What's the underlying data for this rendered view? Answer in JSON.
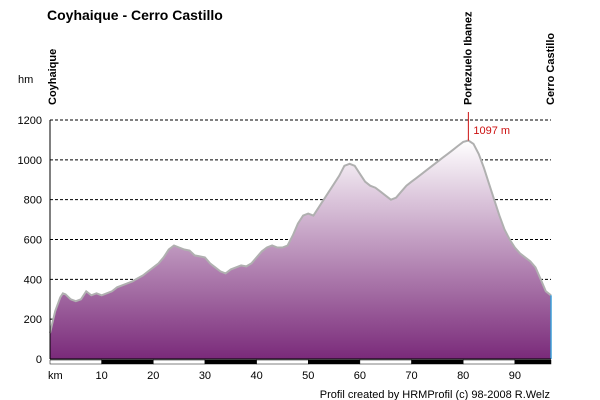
{
  "chart_data": {
    "type": "area",
    "title": "Coyhaique - Cerro Castillo",
    "xlabel": "km",
    "ylabel": "hm",
    "xlim": [
      0,
      97
    ],
    "ylim": [
      0,
      1200
    ],
    "yticks": [
      0,
      200,
      400,
      600,
      800,
      1000,
      1200
    ],
    "xticks": [
      10,
      20,
      30,
      40,
      50,
      60,
      70,
      80,
      90
    ],
    "grid": true,
    "profile": {
      "x": [
        0,
        1,
        2,
        2.5,
        3,
        4,
        5,
        6,
        7,
        8,
        9,
        10,
        11,
        12,
        13,
        14,
        15,
        16,
        17,
        18,
        19,
        20,
        21,
        22,
        23,
        24,
        25,
        26,
        27,
        28,
        29,
        30,
        31,
        32,
        33,
        34,
        35,
        36,
        37,
        38,
        39,
        40,
        41,
        42,
        43,
        44,
        45,
        46,
        47,
        48,
        49,
        50,
        51,
        52,
        53,
        54,
        55,
        56,
        57,
        58,
        59,
        60,
        61,
        62,
        63,
        64,
        65,
        66,
        67,
        68,
        69,
        70,
        71,
        72,
        73,
        74,
        75,
        76,
        77,
        78,
        79,
        80,
        81,
        82,
        83,
        84,
        85,
        86,
        87,
        88,
        89,
        90,
        91,
        92,
        93,
        94,
        95,
        96,
        97
      ],
      "y": [
        130,
        240,
        310,
        330,
        325,
        300,
        290,
        300,
        340,
        320,
        330,
        320,
        330,
        340,
        360,
        370,
        380,
        390,
        405,
        420,
        440,
        460,
        480,
        510,
        550,
        570,
        560,
        550,
        545,
        520,
        515,
        510,
        480,
        460,
        440,
        430,
        450,
        460,
        470,
        465,
        480,
        510,
        540,
        560,
        570,
        560,
        560,
        570,
        620,
        680,
        720,
        730,
        720,
        760,
        800,
        840,
        880,
        920,
        970,
        980,
        970,
        930,
        890,
        870,
        860,
        840,
        820,
        800,
        810,
        840,
        870,
        890,
        910,
        930,
        950,
        970,
        990,
        1010,
        1030,
        1050,
        1070,
        1090,
        1097,
        1080,
        1030,
        960,
        880,
        800,
        720,
        650,
        600,
        560,
        530,
        510,
        490,
        460,
        400,
        340,
        320
      ]
    },
    "places": [
      {
        "km": 0,
        "name": "Coyhaique"
      },
      {
        "km": 81,
        "name": "Portezuelo Ibanez"
      },
      {
        "km": 97,
        "name": "Cerro Castillo"
      }
    ],
    "peak": {
      "km": 81,
      "alt": 1097,
      "label": "1097 m"
    },
    "credit": "Profil created by HRMProfil (c) 98-2008 R.Welz",
    "colors": {
      "fill_top": "#ffffff",
      "fill_bottom": "#7a2a7a",
      "outline": "#b0b0b0",
      "peak_line": "#cc1111",
      "axis_bar": "#000000"
    }
  }
}
